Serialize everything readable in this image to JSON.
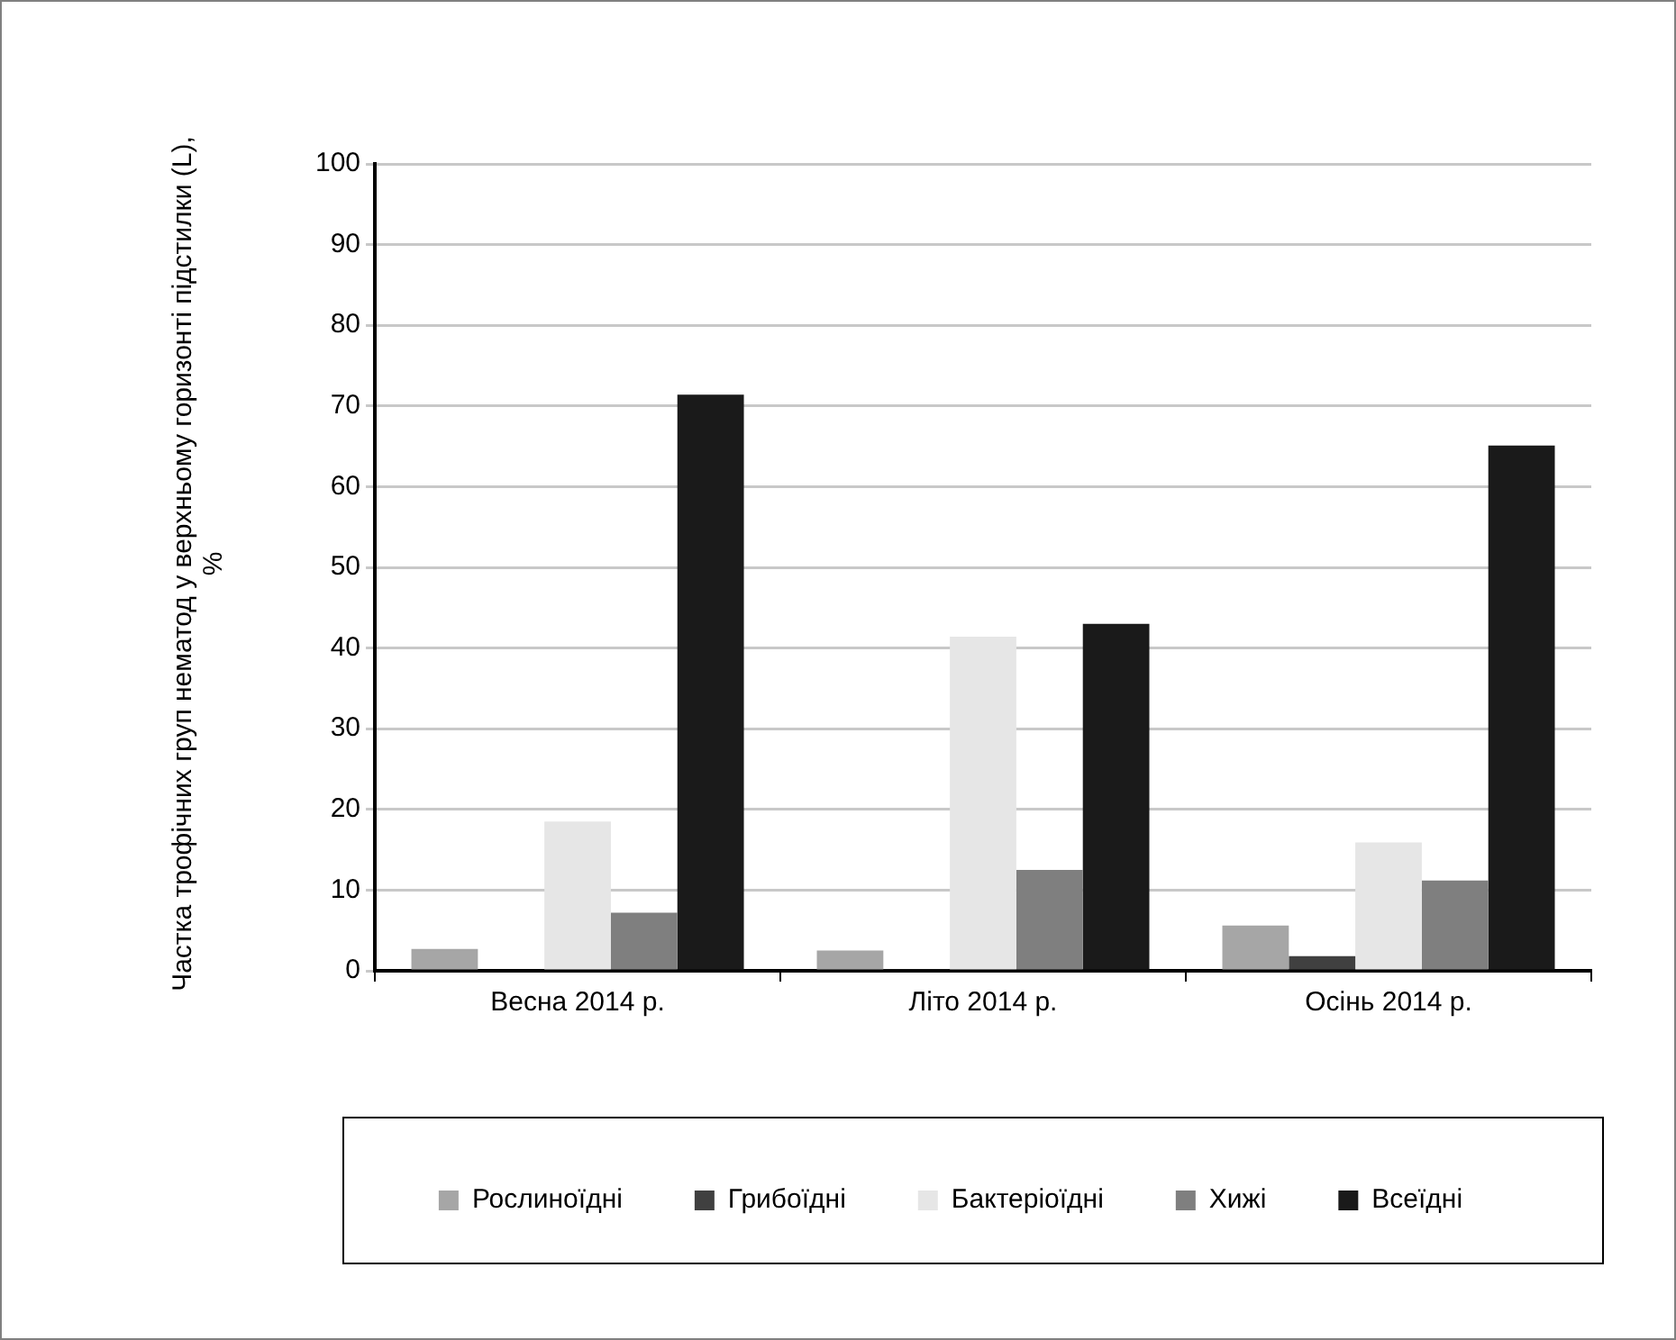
{
  "chart_data": {
    "type": "bar",
    "ylabel": "Частка трофічних груп  нематод у верхньому горизонті підстилки (L), %",
    "categories": [
      "Весна 2014 р.",
      "Літо 2014 р.",
      "Осінь 2014 р."
    ],
    "series": [
      {
        "name": "Рослиноїдні",
        "color": "#a6a6a6",
        "values": [
          2.7,
          2.5,
          5.6
        ]
      },
      {
        "name": "Грибоїдні",
        "color": "#404040",
        "values": [
          0,
          0.2,
          1.8
        ]
      },
      {
        "name": "Бактеріоїдні",
        "color": "#e6e6e6",
        "values": [
          18.5,
          41.4,
          15.9
        ]
      },
      {
        "name": "Хижі",
        "color": "#7f7f7f",
        "values": [
          7.2,
          12.5,
          11.2
        ]
      },
      {
        "name": "Всеїдні",
        "color": "#1a1a1a",
        "values": [
          71.4,
          43.0,
          65.1
        ]
      }
    ],
    "ylim": [
      0,
      100
    ],
    "yticks": [
      0,
      10,
      20,
      30,
      40,
      50,
      60,
      70,
      80,
      90,
      100
    ],
    "grid": "y",
    "legend": "bottom"
  }
}
